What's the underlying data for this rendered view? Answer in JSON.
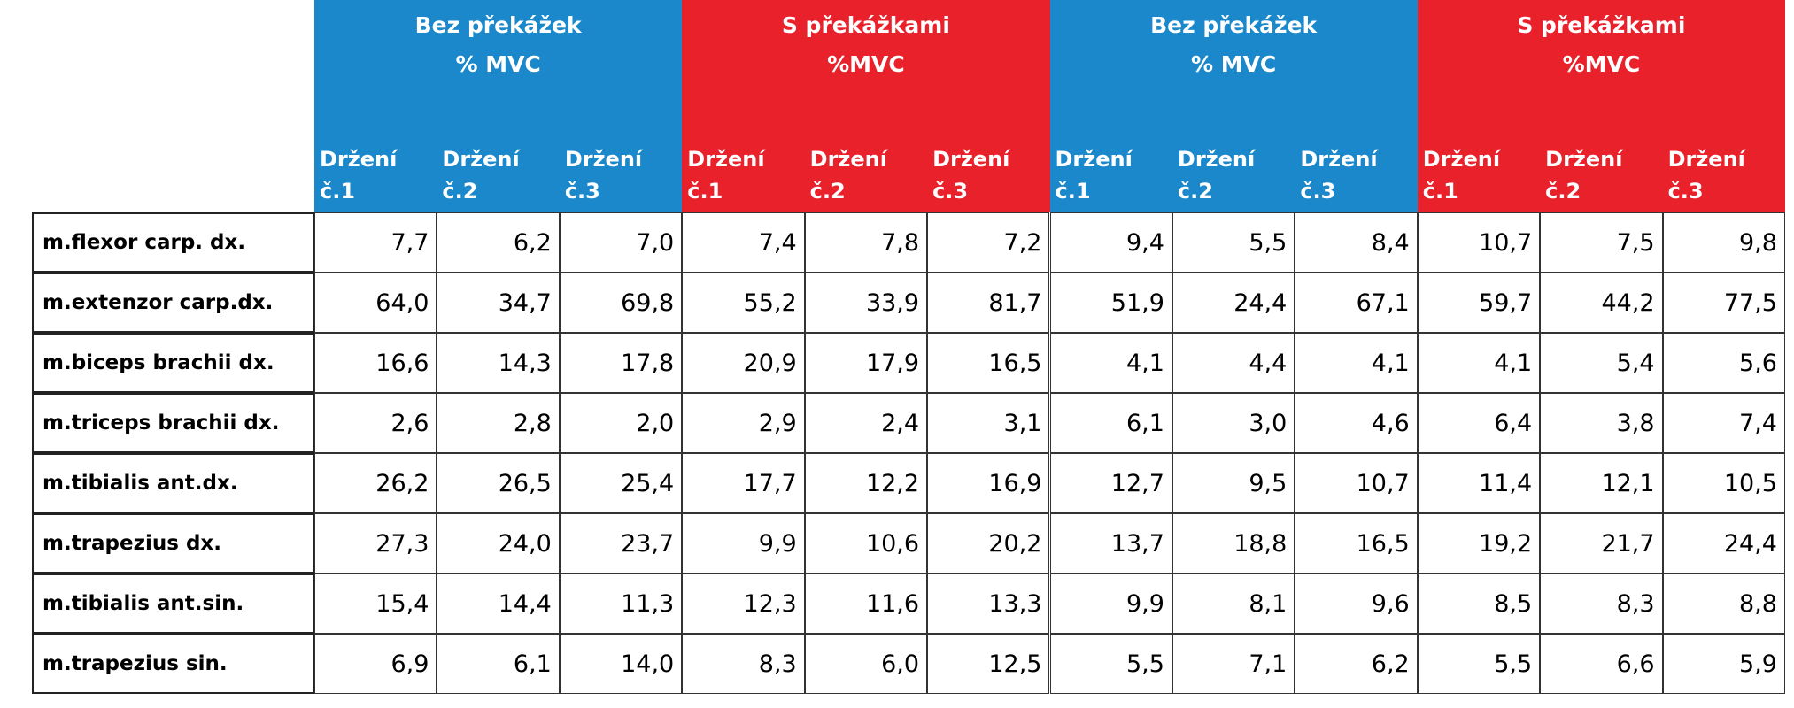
{
  "table": {
    "groups": [
      {
        "title": "Bez překážek",
        "subtitle": "% MVC",
        "columns": [
          "Držení č.1",
          "Držení č.2",
          "Držení č.3"
        ]
      },
      {
        "title": "S překážkami",
        "subtitle": "%MVC",
        "columns": [
          "Držení č.1",
          "Držení č.2",
          "Držení č.3"
        ]
      },
      {
        "title": "Bez překážek",
        "subtitle": "% MVC",
        "columns": [
          "Držení č.1",
          "Držení č.2",
          "Držení č.3"
        ]
      },
      {
        "title": "S překážkami",
        "subtitle": "%MVC",
        "columns": [
          "Držení č.1",
          "Držení č.2",
          "Držení č.3"
        ]
      }
    ],
    "rows": [
      {
        "label": "m.flexor carp. dx.",
        "values": [
          "7,7",
          "6,2",
          "7,0",
          "7,4",
          "7,8",
          "7,2",
          "9,4",
          "5,5",
          "8,4",
          "10,7",
          "7,5",
          "9,8"
        ]
      },
      {
        "label": "m.extenzor carp.dx.",
        "values": [
          "64,0",
          "34,7",
          "69,8",
          "55,2",
          "33,9",
          "81,7",
          "51,9",
          "24,4",
          "67,1",
          "59,7",
          "44,2",
          "77,5"
        ]
      },
      {
        "label": "m.biceps brachii dx.",
        "values": [
          "16,6",
          "14,3",
          "17,8",
          "20,9",
          "17,9",
          "16,5",
          "4,1",
          "4,4",
          "4,1",
          "4,1",
          "5,4",
          "5,6"
        ]
      },
      {
        "label": "m.triceps brachii dx.",
        "values": [
          "2,6",
          "2,8",
          "2,0",
          "2,9",
          "2,4",
          "3,1",
          "6,1",
          "3,0",
          "4,6",
          "6,4",
          "3,8",
          "7,4"
        ]
      },
      {
        "label": "m.tibialis ant.dx.",
        "values": [
          "26,2",
          "26,5",
          "25,4",
          "17,7",
          "12,2",
          "16,9",
          "12,7",
          "9,5",
          "10,7",
          "11,4",
          "12,1",
          "10,5"
        ]
      },
      {
        "label": "m.trapezius dx.",
        "values": [
          "27,3",
          "24,0",
          "23,7",
          "9,9",
          "10,6",
          "20,2",
          "13,7",
          "18,8",
          "16,5",
          "19,2",
          "21,7",
          "24,4"
        ]
      },
      {
        "label": "m.tibialis ant.sin.",
        "values": [
          "15,4",
          "14,4",
          "11,3",
          "12,3",
          "11,6",
          "13,3",
          "9,9",
          "8,1",
          "9,6",
          "8,5",
          "8,3",
          "8,8"
        ]
      },
      {
        "label": "m.trapezius sin.",
        "values": [
          "6,9",
          "6,1",
          "14,0",
          "8,3",
          "6,0",
          "12,5",
          "5,5",
          "7,1",
          "6,2",
          "5,5",
          "6,6",
          "5,9"
        ]
      }
    ]
  }
}
